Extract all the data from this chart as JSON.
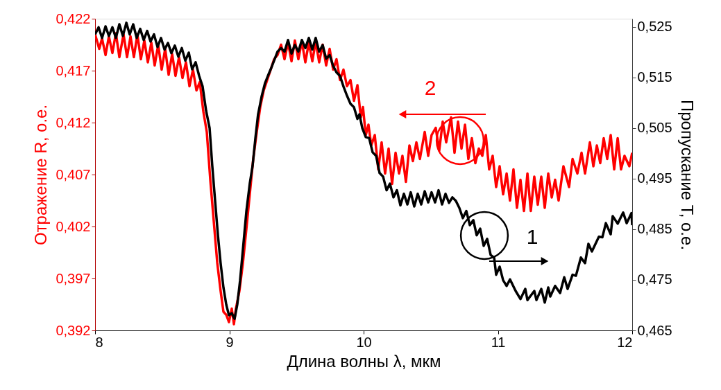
{
  "chart_data": {
    "type": "line",
    "xlabel": "Длина волны λ, мкм",
    "ylabel": "Отражение R, о.е.",
    "y2label": "Пропускание T, о.е.",
    "xlim": [
      8,
      12
    ],
    "xticks": [
      8,
      9,
      10,
      11,
      12
    ],
    "ylim": [
      0.392,
      0.422
    ],
    "yticks": [
      {
        "value": 0.392,
        "label": "0,392"
      },
      {
        "value": 0.397,
        "label": "0,397"
      },
      {
        "value": 0.402,
        "label": "0,402"
      },
      {
        "value": 0.407,
        "label": "0,407"
      },
      {
        "value": 0.412,
        "label": "0,412"
      },
      {
        "value": 0.417,
        "label": "0,417"
      },
      {
        "value": 0.422,
        "label": "0,422"
      }
    ],
    "y2lim": [
      0.465,
      0.5266
    ],
    "y2ticks": [
      {
        "value": 0.465,
        "label": "0,465"
      },
      {
        "value": 0.475,
        "label": "0,475"
      },
      {
        "value": 0.485,
        "label": "0,485"
      },
      {
        "value": 0.495,
        "label": "0,495"
      },
      {
        "value": 0.505,
        "label": "0,505"
      },
      {
        "value": 0.515,
        "label": "0,515"
      },
      {
        "value": 0.525,
        "label": "0,525"
      }
    ],
    "grid": false,
    "marker": "none",
    "line_style": "solid",
    "series": [
      {
        "color": "#ff0000",
        "axis": "y",
        "x": [
          8.0,
          8.031,
          8.052,
          8.078,
          8.103,
          8.129,
          8.155,
          8.181,
          8.212,
          8.238,
          8.264,
          8.289,
          8.315,
          8.341,
          8.367,
          8.393,
          8.419,
          8.444,
          8.47,
          8.496,
          8.522,
          8.548,
          8.574,
          8.599,
          8.625,
          8.651,
          8.677,
          8.703,
          8.729,
          8.755,
          8.78,
          8.806,
          8.832,
          8.858,
          8.884,
          8.91,
          8.935,
          8.956,
          8.977,
          8.997,
          9.018,
          9.034,
          9.049,
          9.075,
          9.101,
          9.127,
          9.152,
          9.178,
          9.204,
          9.23,
          9.256,
          9.282,
          9.308,
          9.333,
          9.359,
          9.385,
          9.411,
          9.437,
          9.463,
          9.488,
          9.514,
          9.54,
          9.566,
          9.592,
          9.618,
          9.643,
          9.669,
          9.695,
          9.721,
          9.747,
          9.773,
          9.798,
          9.824,
          9.85,
          9.876,
          9.902,
          9.928,
          9.954,
          9.979,
          9.995,
          10.016,
          10.036,
          10.057,
          10.083,
          10.109,
          10.134,
          10.16,
          10.186,
          10.212,
          10.238,
          10.264,
          10.289,
          10.315,
          10.341,
          10.367,
          10.393,
          10.419,
          10.455,
          10.481,
          10.506,
          10.537,
          10.563,
          10.589,
          10.615,
          10.651,
          10.677,
          10.703,
          10.729,
          10.755,
          10.78,
          10.806,
          10.832,
          10.858,
          10.884,
          10.91,
          10.935,
          10.961,
          10.987,
          11.013,
          11.039,
          11.065,
          11.09,
          11.116,
          11.142,
          11.168,
          11.194,
          11.22,
          11.245,
          11.271,
          11.297,
          11.323,
          11.349,
          11.375,
          11.401,
          11.426,
          11.452,
          11.488,
          11.53,
          11.556,
          11.592,
          11.623,
          11.649,
          11.685,
          11.711,
          11.737,
          11.762,
          11.788,
          11.814,
          11.84,
          11.866,
          11.892,
          11.917,
          11.943,
          11.979,
          12.0
        ],
        "values": [
          0.4205,
          0.4191,
          0.4201,
          0.4185,
          0.4203,
          0.4187,
          0.4206,
          0.4183,
          0.4205,
          0.4183,
          0.4203,
          0.4183,
          0.4205,
          0.4181,
          0.4199,
          0.4178,
          0.4197,
          0.4175,
          0.4195,
          0.4171,
          0.4191,
          0.4166,
          0.4186,
          0.4165,
          0.4183,
          0.4163,
          0.4178,
          0.4155,
          0.4171,
          0.4151,
          0.4159,
          0.4131,
          0.4111,
          0.4065,
          0.4025,
          0.3985,
          0.3958,
          0.3938,
          0.3935,
          0.3928,
          0.3941,
          0.3926,
          0.3941,
          0.3958,
          0.3985,
          0.4018,
          0.4051,
          0.4085,
          0.4111,
          0.4135,
          0.4151,
          0.4161,
          0.4171,
          0.4181,
          0.4185,
          0.4195,
          0.4181,
          0.4197,
          0.4179,
          0.4199,
          0.4181,
          0.4198,
          0.4178,
          0.4197,
          0.4179,
          0.4198,
          0.4178,
          0.4195,
          0.4175,
          0.4191,
          0.4171,
          0.4181,
          0.4161,
          0.4171,
          0.4155,
          0.4161,
          0.4141,
          0.4156,
          0.4125,
          0.4135,
          0.4108,
          0.4118,
          0.4098,
          0.4108,
          0.4075,
          0.4101,
          0.4071,
          0.4095,
          0.4061,
          0.4091,
          0.4071,
          0.4088,
          0.4063,
          0.4098,
          0.4083,
          0.4101,
          0.4085,
          0.4111,
          0.4088,
          0.4108,
          0.4115,
          0.4093,
          0.4121,
          0.4101,
          0.4125,
          0.4091,
          0.4121,
          0.4095,
          0.4118,
          0.4085,
          0.4105,
          0.4081,
          0.4095,
          0.4088,
          0.4108,
          0.4075,
          0.4088,
          0.4058,
          0.4078,
          0.4051,
          0.4071,
          0.4045,
          0.4075,
          0.4038,
          0.4065,
          0.4035,
          0.4071,
          0.4035,
          0.4068,
          0.4041,
          0.4068,
          0.4038,
          0.4071,
          0.4048,
          0.4065,
          0.4045,
          0.4078,
          0.4058,
          0.4085,
          0.4071,
          0.4091,
          0.4071,
          0.4101,
          0.4078,
          0.4098,
          0.4081,
          0.4105,
          0.4085,
          0.4108,
          0.4075,
          0.4105,
          0.4075,
          0.4088,
          0.4078,
          0.4091
        ]
      },
      {
        "color": "#000000",
        "axis": "y2",
        "x": [
          8.0,
          8.026,
          8.052,
          8.078,
          8.103,
          8.129,
          8.155,
          8.181,
          8.207,
          8.233,
          8.258,
          8.284,
          8.31,
          8.336,
          8.362,
          8.388,
          8.413,
          8.439,
          8.465,
          8.491,
          8.517,
          8.543,
          8.568,
          8.594,
          8.62,
          8.646,
          8.672,
          8.698,
          8.723,
          8.749,
          8.775,
          8.801,
          8.827,
          8.853,
          8.873,
          8.894,
          8.915,
          8.935,
          8.956,
          8.977,
          8.997,
          9.018,
          9.039,
          9.059,
          9.08,
          9.101,
          9.127,
          9.152,
          9.173,
          9.194,
          9.214,
          9.24,
          9.266,
          9.287,
          9.308,
          9.333,
          9.359,
          9.385,
          9.411,
          9.437,
          9.463,
          9.488,
          9.514,
          9.54,
          9.566,
          9.592,
          9.618,
          9.643,
          9.669,
          9.695,
          9.721,
          9.747,
          9.773,
          9.798,
          9.824,
          9.85,
          9.876,
          9.902,
          9.928,
          9.954,
          9.969,
          9.99,
          10.016,
          10.041,
          10.067,
          10.093,
          10.119,
          10.145,
          10.171,
          10.196,
          10.222,
          10.248,
          10.274,
          10.3,
          10.326,
          10.351,
          10.377,
          10.403,
          10.429,
          10.455,
          10.481,
          10.506,
          10.532,
          10.558,
          10.584,
          10.61,
          10.636,
          10.661,
          10.687,
          10.713,
          10.739,
          10.765,
          10.791,
          10.817,
          10.842,
          10.868,
          10.894,
          10.92,
          10.946,
          10.972,
          10.987,
          11.013,
          11.039,
          11.065,
          11.09,
          11.132,
          11.168,
          11.204,
          11.22,
          11.271,
          11.287,
          11.323,
          11.349,
          11.375,
          11.39,
          11.426,
          11.463,
          11.494,
          11.519,
          11.556,
          11.581,
          11.618,
          11.649,
          11.674,
          11.7,
          11.752,
          11.778,
          11.804,
          11.84,
          11.855,
          11.892,
          11.933,
          11.959,
          11.995,
          12.0
        ],
        "values": [
          0.5235,
          0.5249,
          0.5228,
          0.5251,
          0.5232,
          0.5249,
          0.5228,
          0.5255,
          0.5232,
          0.5258,
          0.5235,
          0.5255,
          0.5228,
          0.5246,
          0.5224,
          0.5242,
          0.5221,
          0.5235,
          0.521,
          0.5228,
          0.5205,
          0.5218,
          0.5198,
          0.5213,
          0.5191,
          0.5208,
          0.5183,
          0.5199,
          0.5166,
          0.518,
          0.5153,
          0.5132,
          0.5084,
          0.505,
          0.4975,
          0.4906,
          0.4838,
          0.4783,
          0.4735,
          0.4701,
          0.468,
          0.4684,
          0.4673,
          0.4701,
          0.4749,
          0.481,
          0.4886,
          0.494,
          0.4975,
          0.503,
          0.5077,
          0.5112,
          0.5139,
          0.5153,
          0.5166,
          0.5183,
          0.5201,
          0.5208,
          0.5201,
          0.5224,
          0.5197,
          0.5214,
          0.5201,
          0.5224,
          0.5208,
          0.5228,
          0.5205,
          0.5228,
          0.5201,
          0.5214,
          0.5187,
          0.5194,
          0.5173,
          0.516,
          0.5153,
          0.5132,
          0.5114,
          0.5098,
          0.5091,
          0.5068,
          0.5077,
          0.505,
          0.5032,
          0.503,
          0.5002,
          0.4995,
          0.4961,
          0.4954,
          0.4927,
          0.494,
          0.4913,
          0.4927,
          0.4897,
          0.492,
          0.4899,
          0.4923,
          0.4895,
          0.492,
          0.4899,
          0.4925,
          0.4903,
          0.4923,
          0.4903,
          0.4927,
          0.4899,
          0.492,
          0.4902,
          0.4913,
          0.4906,
          0.4892,
          0.4872,
          0.4886,
          0.4858,
          0.4868,
          0.4838,
          0.4851,
          0.4817,
          0.4831,
          0.4799,
          0.4794,
          0.476,
          0.4776,
          0.4749,
          0.4738,
          0.4751,
          0.4728,
          0.4712,
          0.4732,
          0.471,
          0.4728,
          0.471,
          0.4732,
          0.4705,
          0.4735,
          0.4717,
          0.4738,
          0.4724,
          0.4755,
          0.4732,
          0.476,
          0.4758,
          0.4794,
          0.4783,
          0.4821,
          0.4806,
          0.4835,
          0.4834,
          0.4862,
          0.484,
          0.4876,
          0.4861,
          0.4883,
          0.4862,
          0.4882,
          0.4858
        ]
      }
    ],
    "annotations": [
      "2",
      "1"
    ]
  }
}
